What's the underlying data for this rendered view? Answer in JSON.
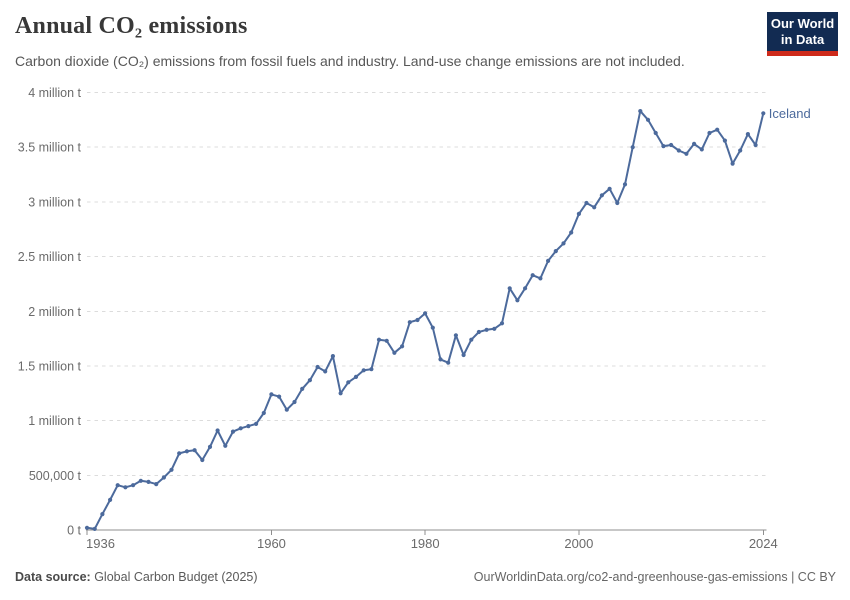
{
  "header": {
    "title": "Annual CO₂ emissions",
    "subtitle": "Carbon dioxide (CO₂) emissions from fossil fuels and industry. Land-use change emissions are not included.",
    "logo": {
      "line1": "Our World",
      "line2": "in Data",
      "bg_color": "#122b52",
      "bar_color": "#ce2a1b"
    }
  },
  "footer": {
    "source_label": "Data source:",
    "source_value": " Global Carbon Budget (2025)",
    "right_text": "OurWorldinData.org/co2-and-greenhouse-gas-emissions | CC BY"
  },
  "chart_data": {
    "type": "line",
    "title": "Annual CO₂ emissions",
    "xlabel": "",
    "ylabel": "",
    "xlim": [
      1936,
      2024
    ],
    "ylim": [
      0,
      4000000
    ],
    "grid": "dashed-horizontal",
    "legend_position": "end-of-line-label",
    "xticks": [
      1936,
      1960,
      1980,
      2000,
      2024
    ],
    "yticks": [
      {
        "value": 0,
        "label": "0 t"
      },
      {
        "value": 500000,
        "label": "500,000 t"
      },
      {
        "value": 1000000,
        "label": "1 million t"
      },
      {
        "value": 1500000,
        "label": "1.5 million t"
      },
      {
        "value": 2000000,
        "label": "2 million t"
      },
      {
        "value": 2500000,
        "label": "2.5 million t"
      },
      {
        "value": 3000000,
        "label": "3 million t"
      },
      {
        "value": 3500000,
        "label": "3.5 million t"
      },
      {
        "value": 4000000,
        "label": "4 million t"
      }
    ],
    "unit": "tonnes",
    "series": [
      {
        "name": "Iceland",
        "color": "#4C6A9C",
        "years": [
          1936,
          1937,
          1938,
          1939,
          1940,
          1941,
          1942,
          1943,
          1944,
          1945,
          1946,
          1947,
          1948,
          1949,
          1950,
          1951,
          1952,
          1953,
          1954,
          1955,
          1956,
          1957,
          1958,
          1959,
          1960,
          1961,
          1962,
          1963,
          1964,
          1965,
          1966,
          1967,
          1968,
          1969,
          1970,
          1971,
          1972,
          1973,
          1974,
          1975,
          1976,
          1977,
          1978,
          1979,
          1980,
          1981,
          1982,
          1983,
          1984,
          1985,
          1986,
          1987,
          1988,
          1989,
          1990,
          1991,
          1992,
          1993,
          1994,
          1995,
          1996,
          1997,
          1998,
          1999,
          2000,
          2001,
          2002,
          2003,
          2004,
          2005,
          2006,
          2007,
          2008,
          2009,
          2010,
          2011,
          2012,
          2013,
          2014,
          2015,
          2016,
          2017,
          2018,
          2019,
          2020,
          2021,
          2022,
          2023,
          2024
        ],
        "values": [
          20000,
          10000,
          145000,
          275000,
          410000,
          390000,
          410000,
          450000,
          440000,
          420000,
          480000,
          550000,
          700000,
          720000,
          730000,
          640000,
          760000,
          910000,
          770000,
          900000,
          930000,
          950000,
          970000,
          1070000,
          1240000,
          1220000,
          1100000,
          1170000,
          1290000,
          1370000,
          1490000,
          1450000,
          1590000,
          1250000,
          1350000,
          1400000,
          1460000,
          1470000,
          1740000,
          1730000,
          1620000,
          1680000,
          1900000,
          1920000,
          1980000,
          1850000,
          1560000,
          1530000,
          1780000,
          1600000,
          1740000,
          1810000,
          1830000,
          1840000,
          1890000,
          2210000,
          2100000,
          2210000,
          2330000,
          2300000,
          2460000,
          2550000,
          2620000,
          2720000,
          2890000,
          2990000,
          2950000,
          3060000,
          3120000,
          2990000,
          3160000,
          3500000,
          3830000,
          3750000,
          3630000,
          3510000,
          3520000,
          3470000,
          3440000,
          3530000,
          3480000,
          3630000,
          3660000,
          3560000,
          3350000,
          3470000,
          3620000,
          3520000,
          3810000
        ]
      }
    ]
  }
}
